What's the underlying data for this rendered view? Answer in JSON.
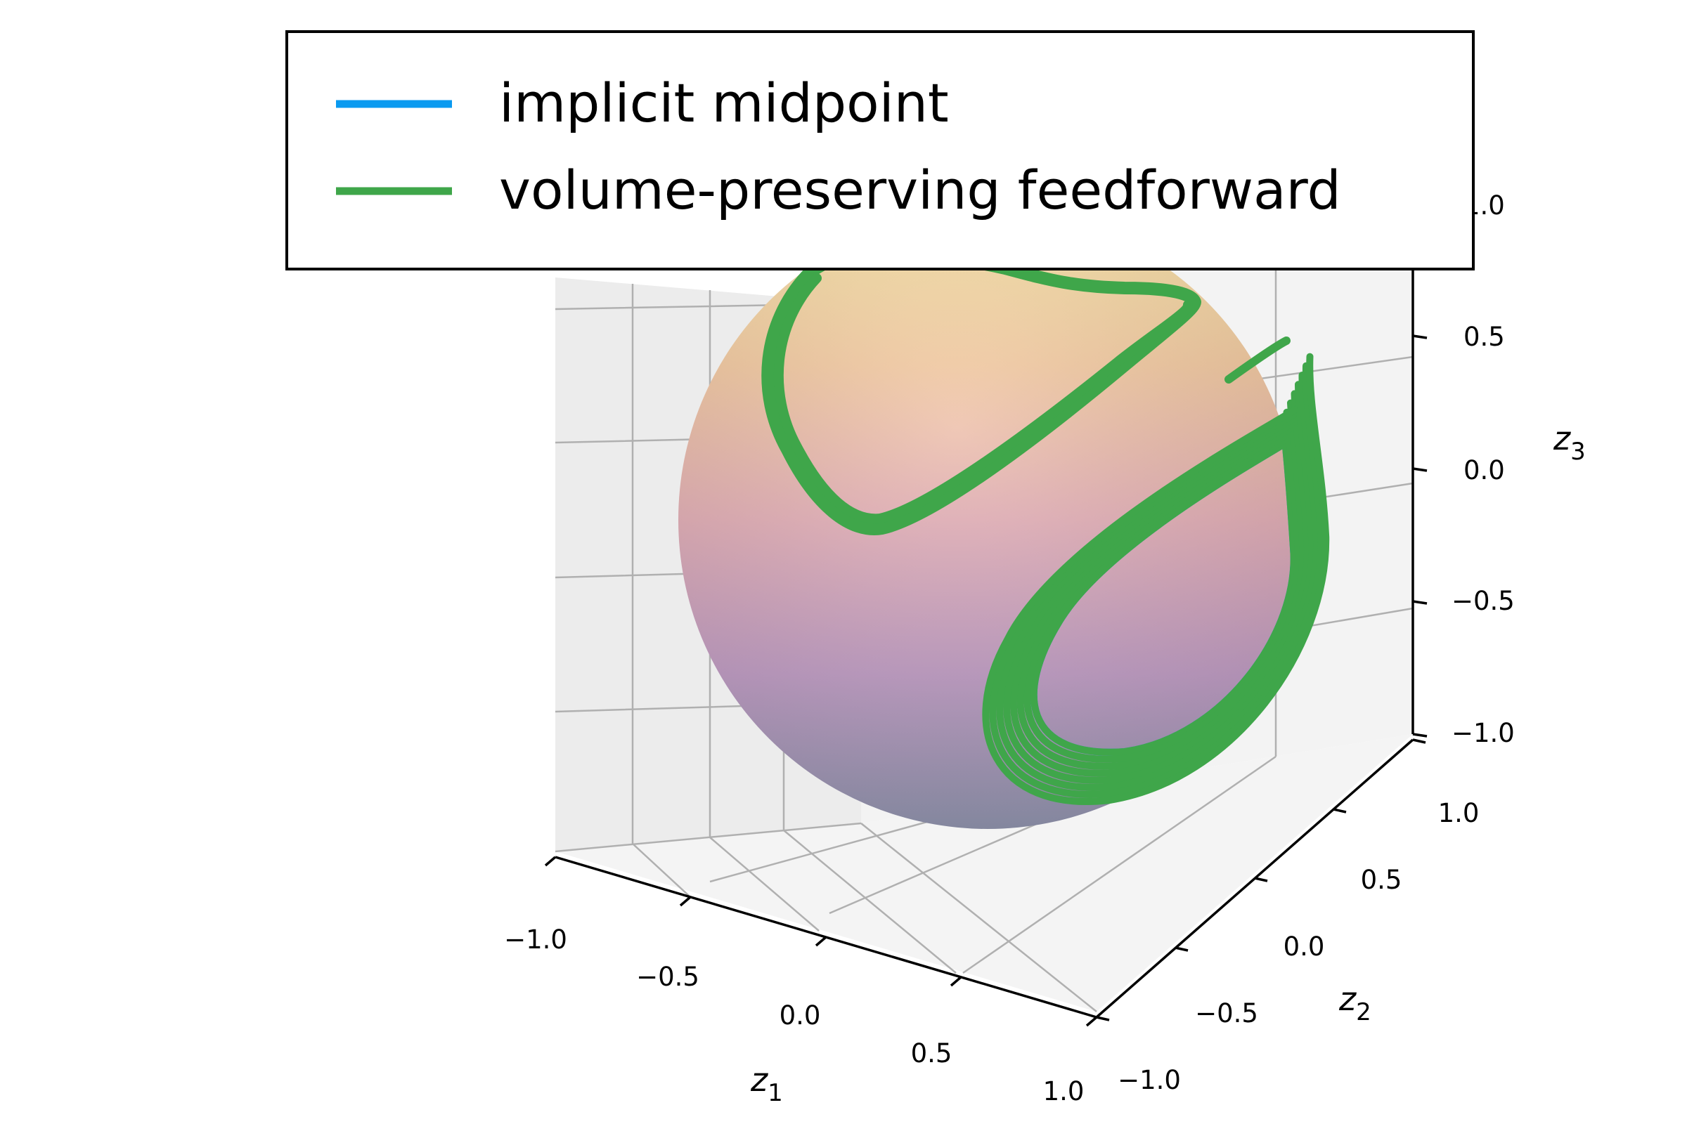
{
  "chart_data": {
    "type": "line",
    "projection": "3d",
    "title": "",
    "axes": {
      "x": {
        "label": "z",
        "subscript": "1",
        "range": [
          -1.0,
          1.0
        ],
        "ticks": [
          -1.0,
          -0.5,
          0.0,
          0.5,
          1.0
        ],
        "tick_labels": [
          "−1.0",
          "−0.5",
          "0.0",
          "0.5",
          "1.0"
        ]
      },
      "y": {
        "label": "z",
        "subscript": "2",
        "range": [
          -1.0,
          1.0
        ],
        "ticks": [
          -1.0,
          -0.5,
          0.0,
          0.5,
          1.0
        ],
        "tick_labels": [
          "−1.0",
          "−0.5",
          "0.0",
          "0.5",
          "1.0"
        ]
      },
      "z": {
        "label": "z",
        "subscript": "3",
        "range": [
          -1.0,
          1.0
        ],
        "ticks": [
          -1.0,
          -0.5,
          0.0,
          0.5,
          1.0
        ],
        "tick_labels": [
          "−1.0",
          "−0.5",
          "0.0",
          "0.5",
          "1.0"
        ]
      }
    },
    "grid": true,
    "surface": {
      "shape": "unit sphere",
      "colormap": "plasma-like (yellow top, purple bottom)",
      "alpha": 0.4
    },
    "legend": {
      "placement": "top-left"
    },
    "series": [
      {
        "name": "implicit midpoint",
        "color": "#0a9af0"
      },
      {
        "name": "volume-preserving feedforward",
        "color": "#3fa64a"
      }
    ]
  }
}
